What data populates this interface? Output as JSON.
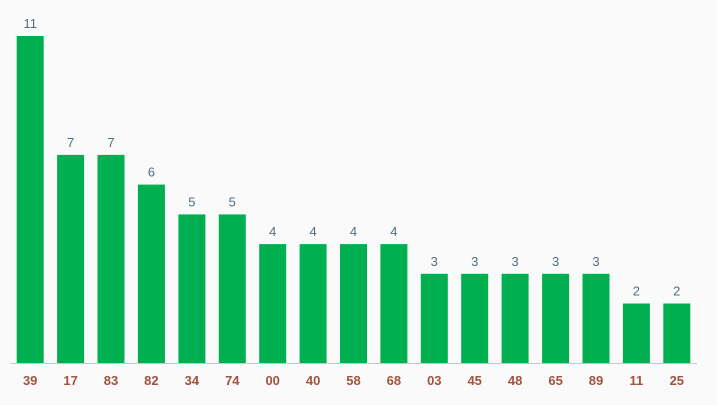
{
  "chart_data": {
    "type": "bar",
    "categories": [
      "39",
      "17",
      "83",
      "82",
      "34",
      "74",
      "00",
      "40",
      "58",
      "68",
      "03",
      "45",
      "48",
      "65",
      "89",
      "11",
      "25"
    ],
    "values": [
      11,
      7,
      7,
      6,
      5,
      5,
      4,
      4,
      4,
      4,
      3,
      3,
      3,
      3,
      3,
      2,
      2
    ],
    "title": "",
    "xlabel": "",
    "ylabel": "",
    "ylim": [
      0,
      11
    ],
    "grid": false,
    "data_labels": true
  },
  "colors": {
    "bar": "#00b050",
    "value_label": "#4f6f86",
    "category_label": "#a0533f",
    "baseline": "#c8c8c8",
    "background": "#fafafa"
  }
}
